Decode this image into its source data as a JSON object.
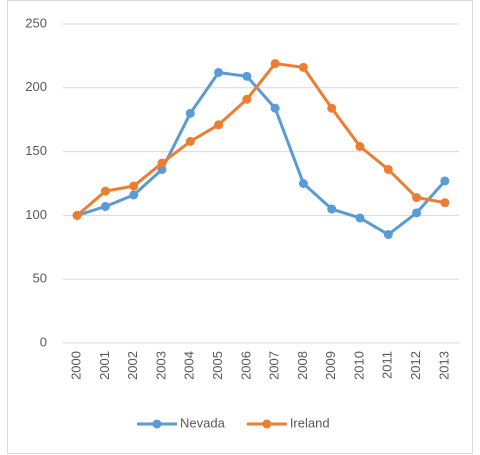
{
  "chart_data": {
    "type": "line",
    "categories": [
      "2000",
      "2001",
      "2002",
      "2003",
      "2004",
      "2005",
      "2006",
      "2007",
      "2008",
      "2009",
      "2010",
      "2011",
      "2012",
      "2013"
    ],
    "series": [
      {
        "name": "Nevada",
        "color": "#5b9bd5",
        "values": [
          100,
          107,
          116,
          136,
          180,
          212,
          209,
          184,
          125,
          105,
          98,
          85,
          102,
          127
        ]
      },
      {
        "name": "Ireland",
        "color": "#ed7d31",
        "values": [
          100,
          119,
          123,
          141,
          158,
          171,
          191,
          219,
          216,
          184,
          154,
          136,
          114,
          110
        ]
      }
    ],
    "ylim": [
      0,
      250
    ],
    "yticks": [
      0,
      50,
      100,
      150,
      200,
      250
    ],
    "grid": true,
    "legend": "bottom"
  }
}
